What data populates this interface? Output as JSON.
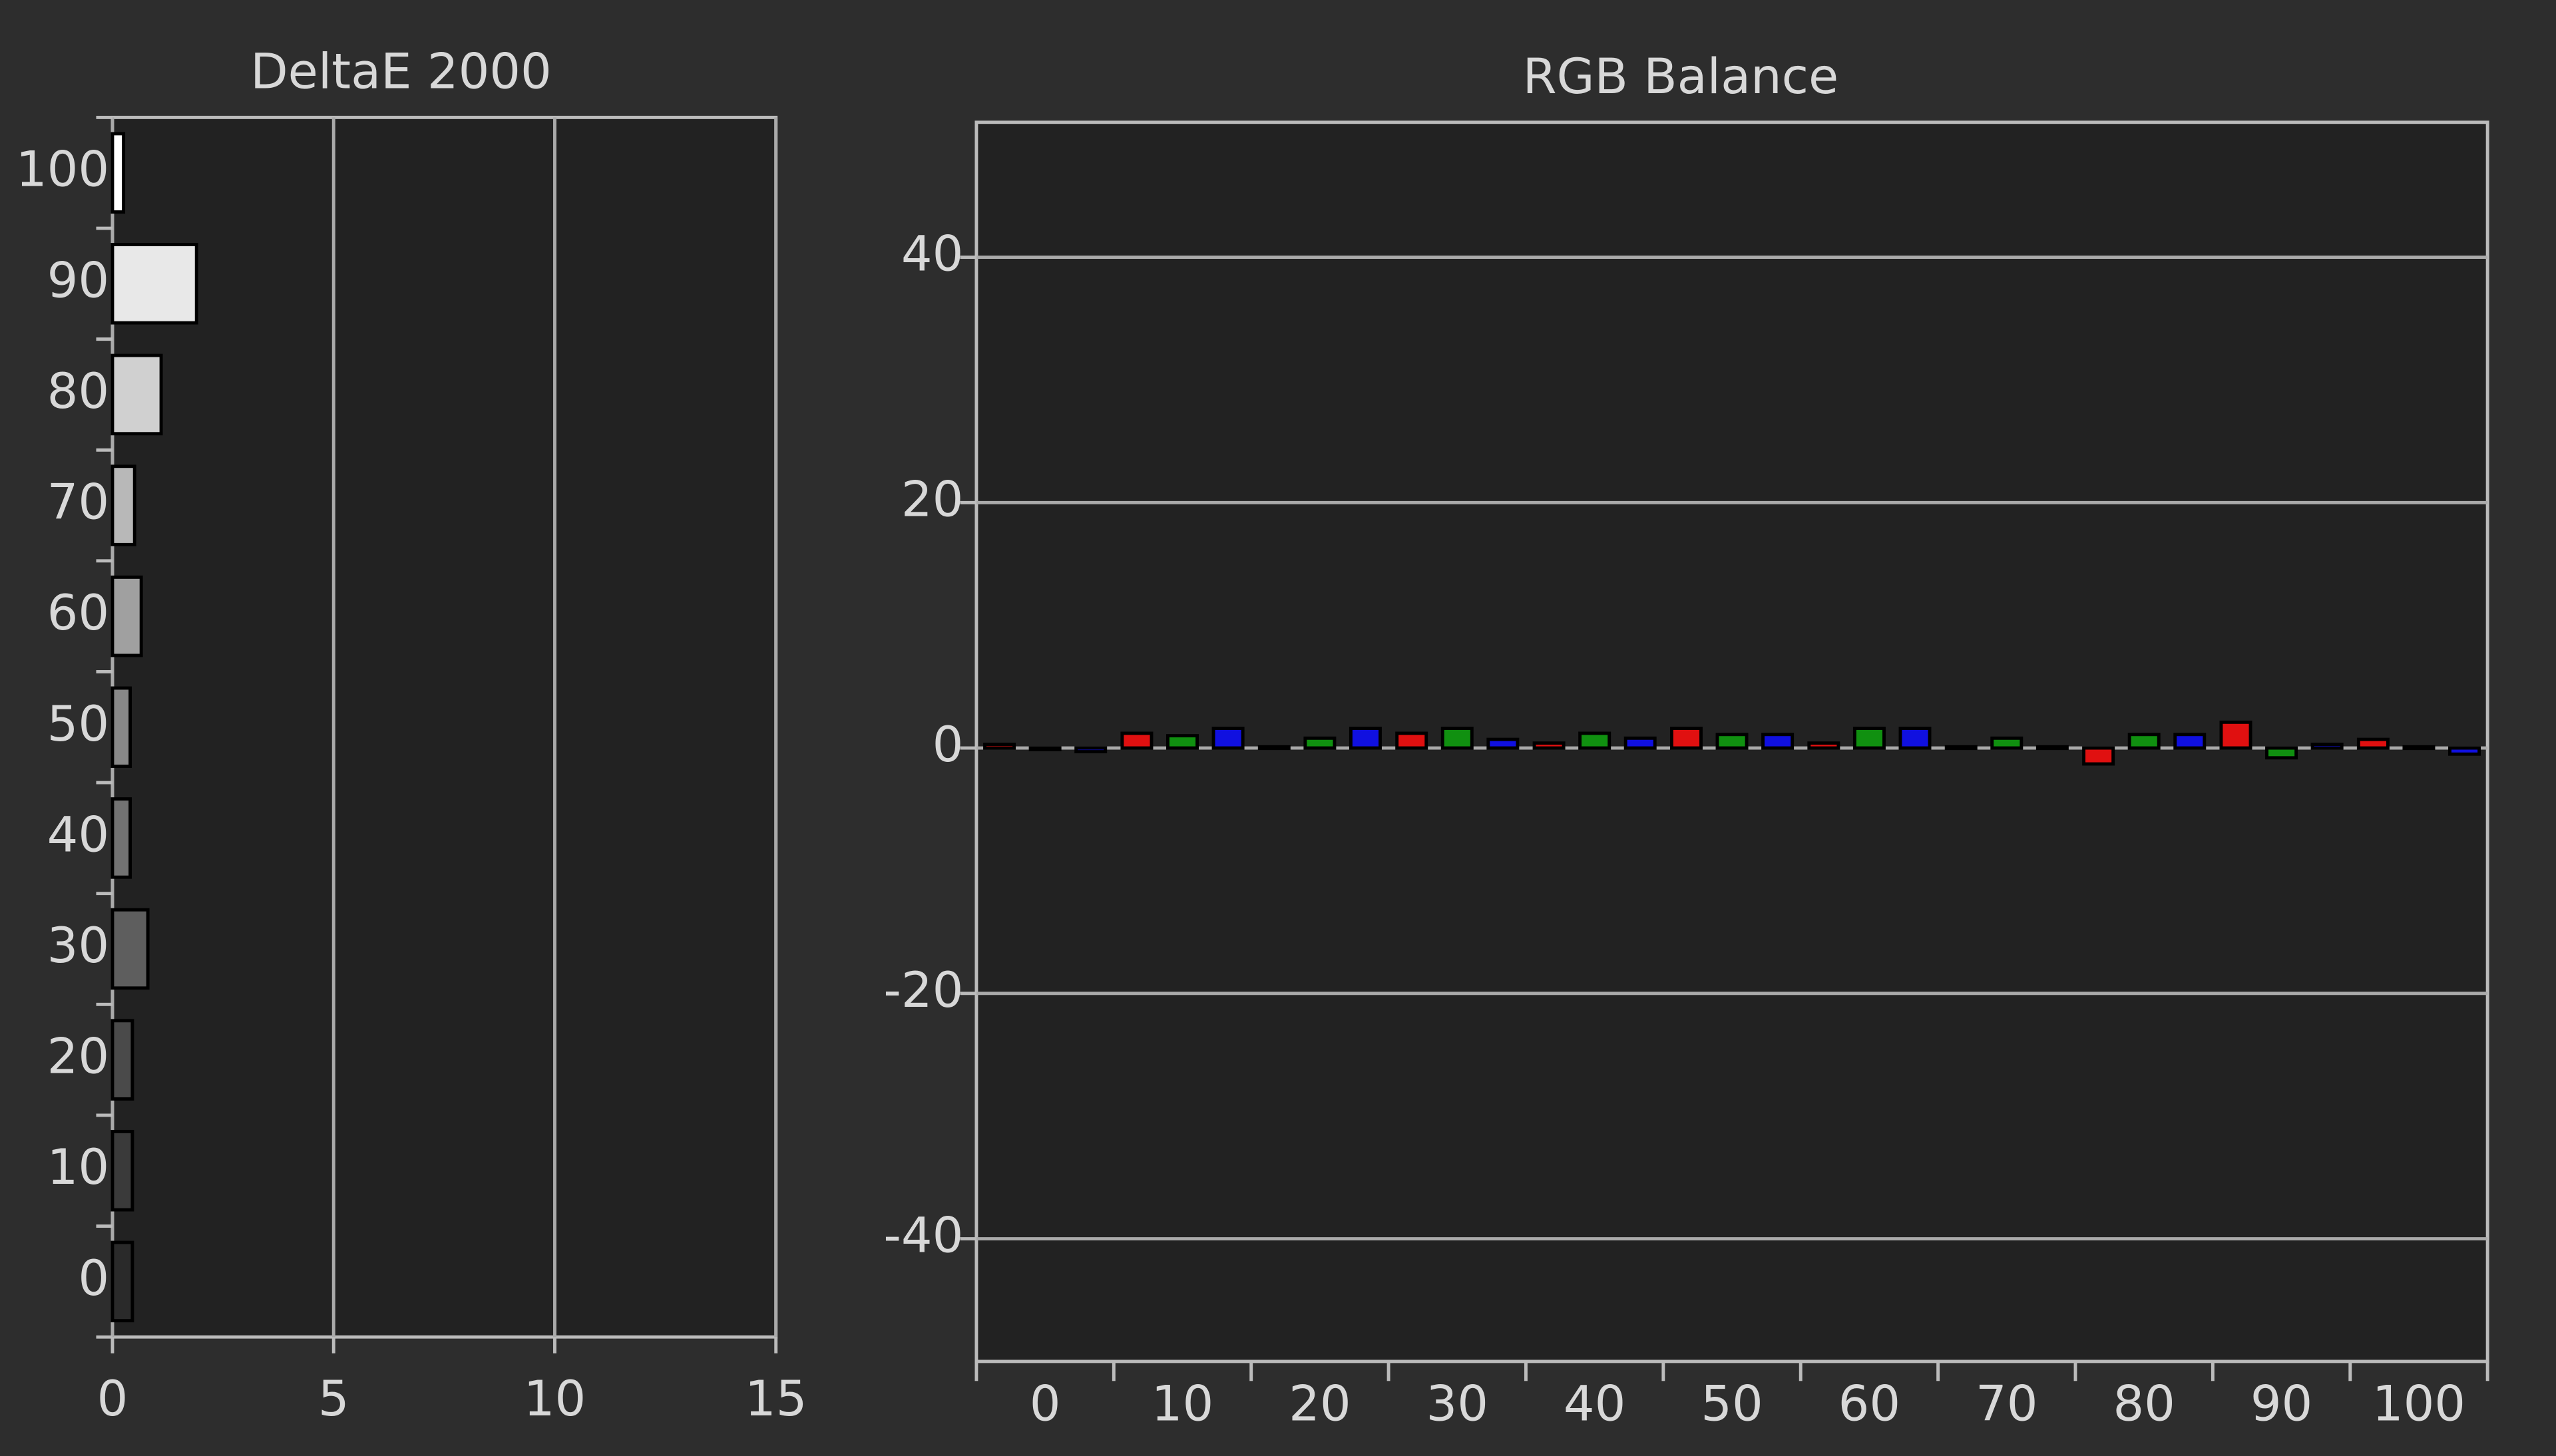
{
  "chart_data": [
    {
      "type": "hbar",
      "title": "DeltaE 2000",
      "categories": [
        "0",
        "10",
        "20",
        "30",
        "40",
        "50",
        "60",
        "70",
        "80",
        "90",
        "100"
      ],
      "values": [
        0.45,
        0.45,
        0.45,
        0.8,
        0.4,
        0.4,
        0.65,
        0.5,
        1.1,
        1.9,
        0.25
      ],
      "colors": [
        "#2a2a2a",
        "#3a3a3a",
        "#4a4a4a",
        "#5e5e5e",
        "#727272",
        "#888888",
        "#a0a0a0",
        "#b8b8b8",
        "#d0d0d0",
        "#e8e8e8",
        "#ffffff"
      ],
      "xlim": [
        0,
        15
      ],
      "xticks": [
        0,
        5,
        10,
        15
      ],
      "grid": true
    },
    {
      "type": "grouped-bar",
      "title": "RGB Balance",
      "categories": [
        "0",
        "10",
        "20",
        "30",
        "40",
        "50",
        "60",
        "70",
        "80",
        "90",
        "100"
      ],
      "series": [
        {
          "name": "Red",
          "color": "#e01010",
          "values": [
            0.3,
            1.2,
            0.1,
            1.2,
            0.4,
            1.6,
            0.4,
            0.1,
            -1.3,
            2.1,
            0.7
          ]
        },
        {
          "name": "Green",
          "color": "#109010",
          "values": [
            0,
            1.0,
            0.8,
            1.6,
            1.2,
            1.1,
            1.6,
            0.8,
            1.1,
            -0.8,
            0.1
          ]
        },
        {
          "name": "Blue",
          "color": "#1010e0",
          "values": [
            -0.3,
            1.6,
            1.6,
            0.7,
            0.8,
            1.1,
            1.6,
            0.1,
            1.1,
            0.3,
            -0.5
          ]
        }
      ],
      "ylim": [
        -50,
        51
      ],
      "yticks": [
        -40,
        -20,
        0,
        20,
        40
      ],
      "grid": true
    }
  ]
}
